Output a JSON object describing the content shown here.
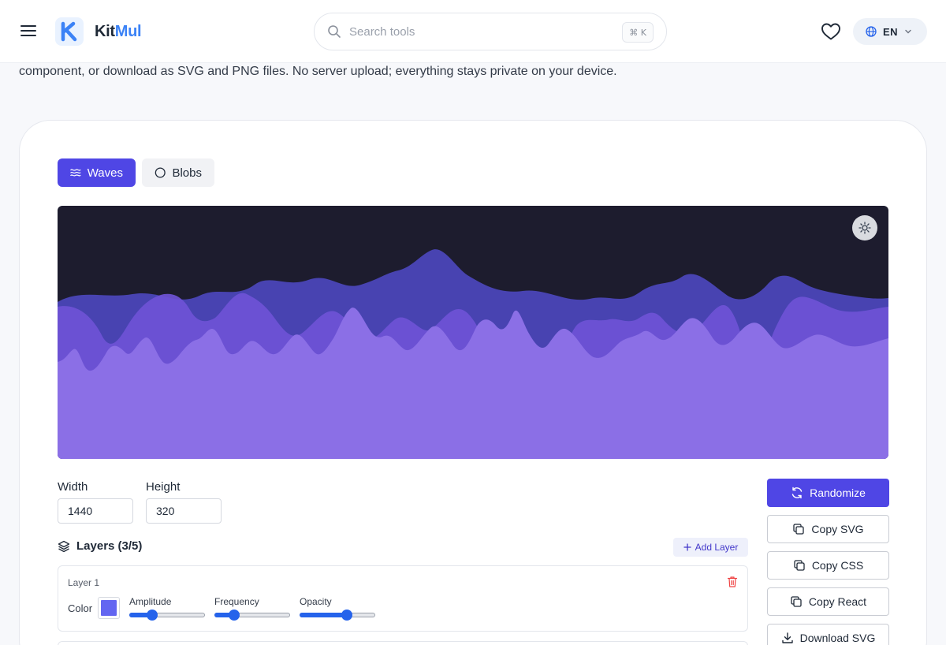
{
  "header": {
    "brand_kit": "Kit",
    "brand_mul": "Mul",
    "search_placeholder": "Search tools",
    "search_shortcut": "⌘ K",
    "language": "EN"
  },
  "intro_text": "component, or download as SVG and PNG files. No server upload; everything stays private on your device.",
  "modes": [
    {
      "label": "Waves",
      "icon": "waves-icon",
      "active": true
    },
    {
      "label": "Blobs",
      "icon": "circle-icon",
      "active": false
    }
  ],
  "dimensions": {
    "width_label": "Width",
    "width_value": "1440",
    "height_label": "Height",
    "height_value": "320"
  },
  "layers": {
    "title": "Layers (3/5)",
    "add_label": "Add Layer",
    "items": [
      {
        "name": "Layer 1",
        "color_label": "Color",
        "color": "#6366f1",
        "amplitude_label": "Amplitude",
        "amplitude": 0.3,
        "frequency_label": "Frequency",
        "frequency": 0.26,
        "opacity_label": "Opacity",
        "opacity": 0.63
      }
    ]
  },
  "actions": {
    "randomize": "Randomize",
    "copy_svg": "Copy SVG",
    "copy_css": "Copy CSS",
    "copy_react": "Copy React",
    "download_svg": "Download SVG"
  },
  "colors": {
    "accent": "#4f46e5",
    "preview_bg": "#1d1c2e",
    "wave_back": "#4b46b8",
    "wave_mid": "#6f53d6",
    "wave_front": "#8b6fe6"
  }
}
